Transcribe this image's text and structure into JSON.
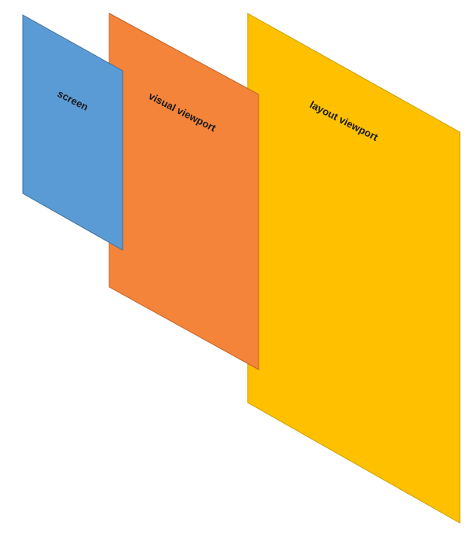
{
  "diagram": {
    "panels": {
      "layout": {
        "label": "layout viewport",
        "fill": "#FFC000",
        "stroke": "#C9A000"
      },
      "visual": {
        "label": "visual viewport",
        "fill": "#F4843A",
        "stroke": "#C0662B"
      },
      "screen": {
        "label": "screen",
        "fill": "#5B9BD5",
        "stroke": "#41719C"
      }
    }
  }
}
